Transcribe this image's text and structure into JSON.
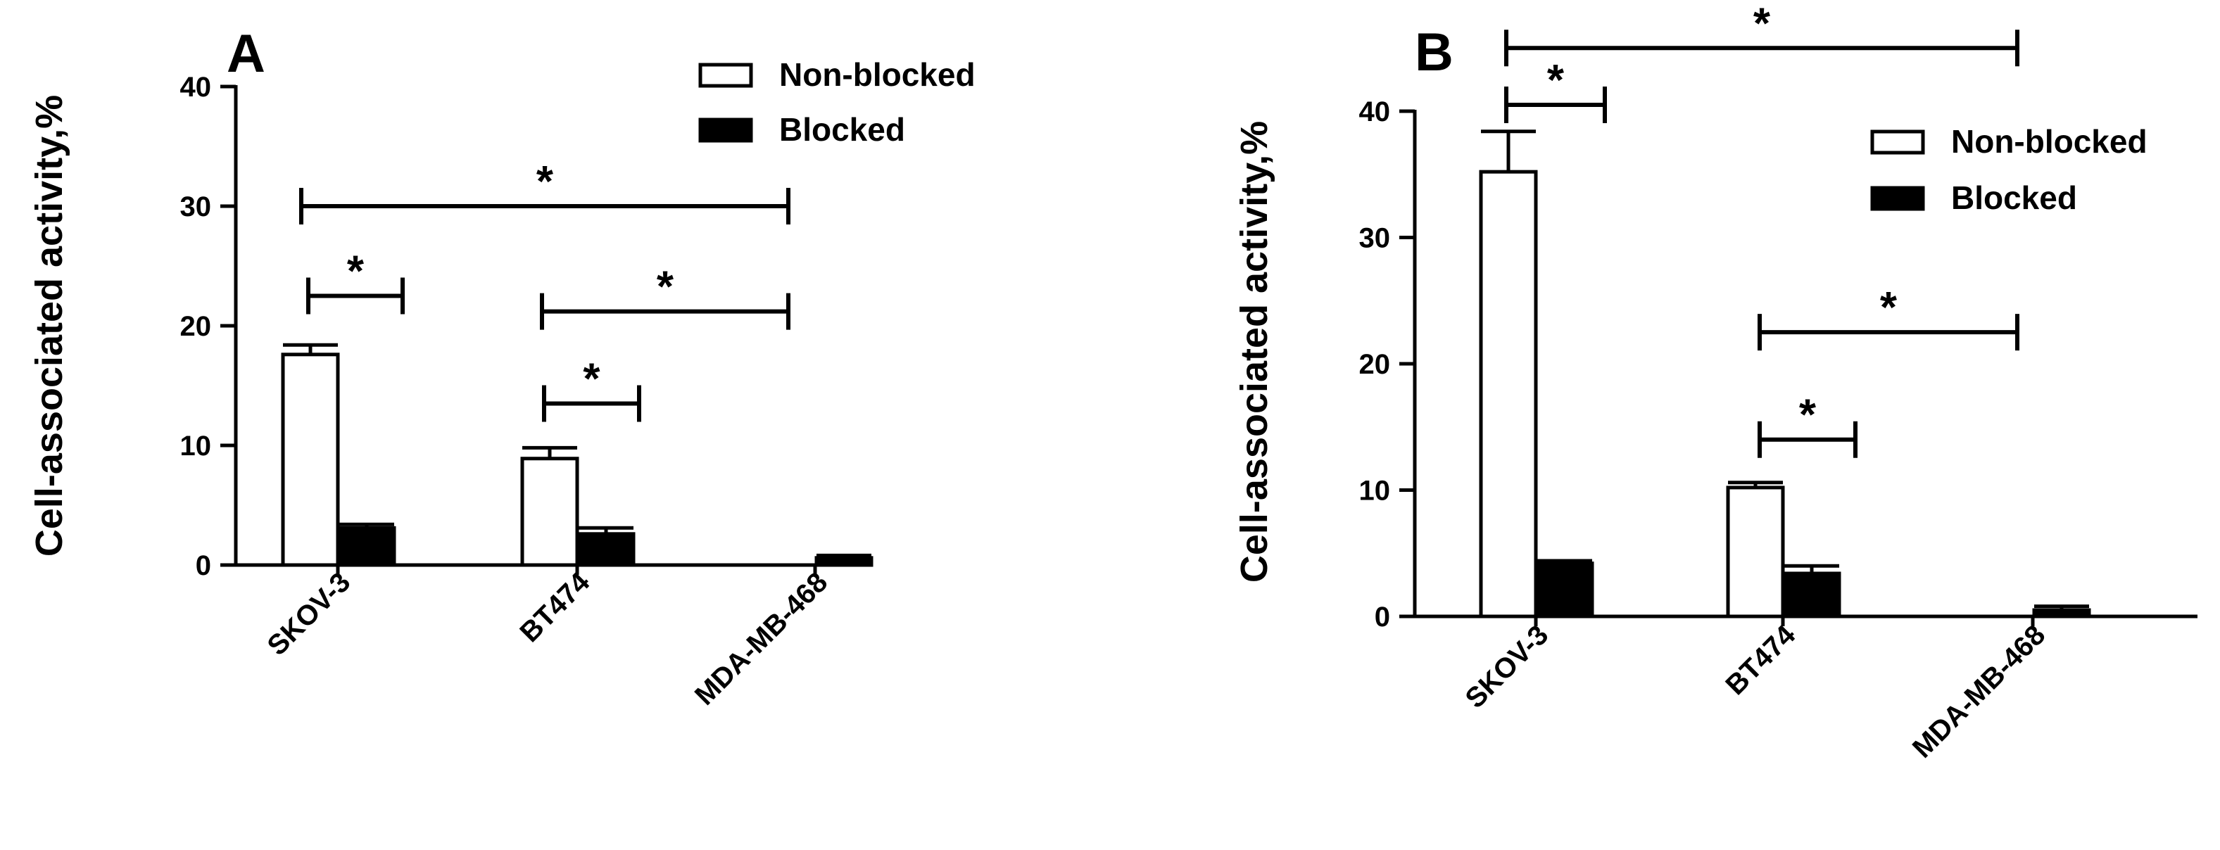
{
  "chart_data": [
    {
      "panel": "A",
      "type": "bar",
      "ylabel": "Cell-associated activity,%",
      "ylim": [
        0,
        40
      ],
      "yticks": [
        0,
        10,
        20,
        30,
        40
      ],
      "categories": [
        "SKOV-3",
        "BT474",
        "MDA-MB-468"
      ],
      "series": [
        {
          "name": "Non-blocked",
          "values": [
            17.6,
            8.9,
            null
          ],
          "errors": [
            0.8,
            0.9,
            null
          ],
          "style": "open"
        },
        {
          "name": "Blocked",
          "values": [
            3.1,
            2.6,
            0.6
          ],
          "errors": [
            0.3,
            0.5,
            0.2
          ],
          "style": "solid"
        }
      ],
      "legend": "top-right",
      "significance": [
        {
          "label": "*",
          "y": 30
        },
        {
          "label": "*",
          "y": 22.5
        },
        {
          "label": "*",
          "y": 21.2
        },
        {
          "label": "*",
          "y": 13.5
        }
      ]
    },
    {
      "panel": "B",
      "type": "bar",
      "ylabel": "Cell-associated activity,%",
      "ylim": [
        0,
        40
      ],
      "yticks": [
        0,
        10,
        20,
        30,
        40
      ],
      "categories": [
        "SKOV-3",
        "BT474",
        "MDA-MB-468"
      ],
      "series": [
        {
          "name": "Non-blocked",
          "values": [
            35.2,
            10.2,
            null
          ],
          "errors": [
            3.2,
            0.4,
            null
          ],
          "style": "open"
        },
        {
          "name": "Blocked",
          "values": [
            4.2,
            3.4,
            0.5
          ],
          "errors": [
            0.2,
            0.6,
            0.3
          ],
          "style": "solid"
        }
      ],
      "legend": "top-right",
      "significance": [
        {
          "label": "*",
          "y": 45
        },
        {
          "label": "*",
          "y": 40.5
        },
        {
          "label": "*",
          "y": 22.5
        },
        {
          "label": "*",
          "y": 14
        }
      ]
    }
  ]
}
